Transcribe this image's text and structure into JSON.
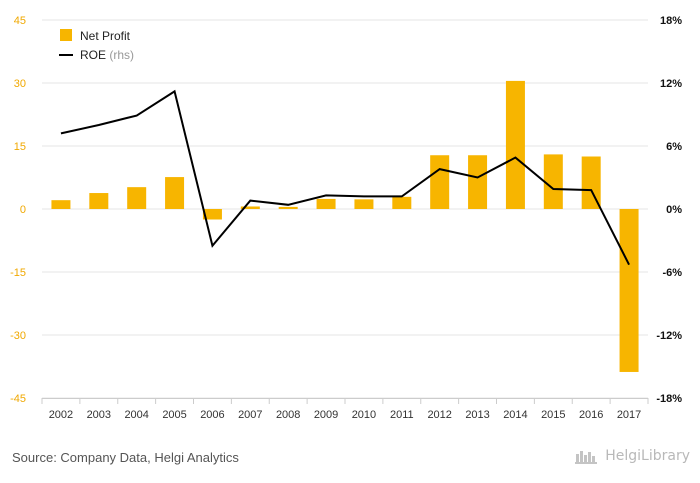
{
  "chart_data": {
    "type": "bar",
    "categories": [
      "2002",
      "2003",
      "2004",
      "2005",
      "2006",
      "2007",
      "2008",
      "2009",
      "2010",
      "2011",
      "2012",
      "2013",
      "2014",
      "2015",
      "2016",
      "2017"
    ],
    "series": [
      {
        "name": "Net Profit",
        "kind": "bar",
        "axis": "left",
        "color": "#f7b500",
        "values": [
          2.1,
          3.8,
          5.2,
          7.6,
          -2.5,
          0.6,
          0.5,
          2.4,
          2.3,
          2.9,
          12.8,
          12.8,
          30.5,
          13.0,
          12.5,
          -38.8
        ]
      },
      {
        "name": "ROE",
        "name_suffix": "(rhs)",
        "kind": "line",
        "axis": "right",
        "color": "#000000",
        "values": [
          7.2,
          8.0,
          8.9,
          11.2,
          -3.5,
          0.8,
          0.4,
          1.3,
          1.2,
          1.2,
          3.8,
          3.0,
          4.9,
          1.9,
          1.8,
          -5.3
        ]
      }
    ],
    "y_left": {
      "ylim": [
        -45,
        45
      ],
      "ticks": [
        "45",
        "30",
        "15",
        "0",
        "-15",
        "-30",
        "-45"
      ],
      "tick_values": [
        45,
        30,
        15,
        0,
        -15,
        -30,
        -45
      ],
      "tick_color": "#f0a800"
    },
    "y_right": {
      "ylim": [
        -18,
        18
      ],
      "ticks": [
        "18%",
        "12%",
        "6%",
        "0%",
        "-6%",
        "-12%",
        "-18%"
      ],
      "tick_values": [
        18,
        12,
        6,
        0,
        -6,
        -12,
        -18
      ]
    },
    "legend_placement": "top-left",
    "grid": "horizontal"
  },
  "footer": {
    "source": "Source: Company Data, Helgi Analytics",
    "brand": "HelgiLibrary"
  }
}
